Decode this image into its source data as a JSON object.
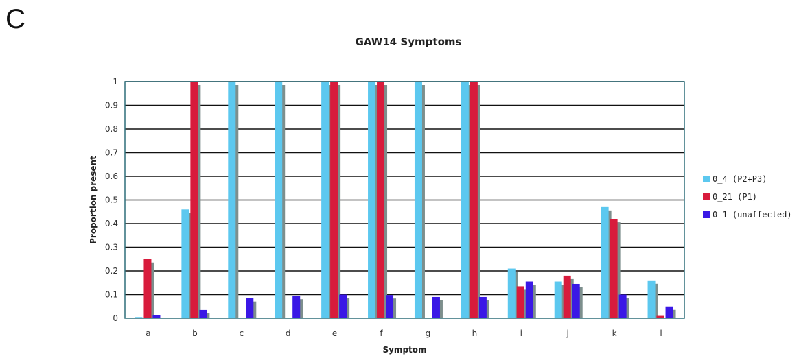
{
  "panel_label": "C",
  "colors": {
    "series": [
      "#5cc8ef",
      "#d81b3c",
      "#3a18e6"
    ],
    "shadow": "#7d8f8d",
    "grid": "#111111",
    "plot_border": "#2f6f7a"
  },
  "chart_data": {
    "type": "bar",
    "title": "GAW14 Symptoms",
    "xlabel": "Symptom",
    "ylabel": "Proportion present",
    "ylim": [
      0,
      1
    ],
    "yticks": [
      "0",
      "0.1",
      "0.2",
      "0.3",
      "0.4",
      "0.5",
      "0.6",
      "0.7",
      "0.8",
      "0.9",
      "1"
    ],
    "grid": true,
    "legend_position": "right",
    "categories": [
      "a",
      "b",
      "c",
      "d",
      "e",
      "f",
      "g",
      "h",
      "i",
      "j",
      "k",
      "l"
    ],
    "series": [
      {
        "name": "0_4 (P2+P3)",
        "values": [
          0.005,
          0.46,
          1.0,
          1.0,
          1.0,
          1.0,
          1.0,
          1.0,
          0.21,
          0.155,
          0.47,
          0.16
        ]
      },
      {
        "name": "0_21 (P1)",
        "values": [
          0.25,
          1.0,
          0.0,
          0.0,
          1.0,
          1.0,
          0.0,
          1.0,
          0.135,
          0.18,
          0.42,
          0.01
        ]
      },
      {
        "name": "0_1 (unaffected)",
        "values": [
          0.012,
          0.035,
          0.085,
          0.095,
          0.1,
          0.098,
          0.09,
          0.09,
          0.155,
          0.145,
          0.1,
          0.05
        ]
      }
    ]
  }
}
